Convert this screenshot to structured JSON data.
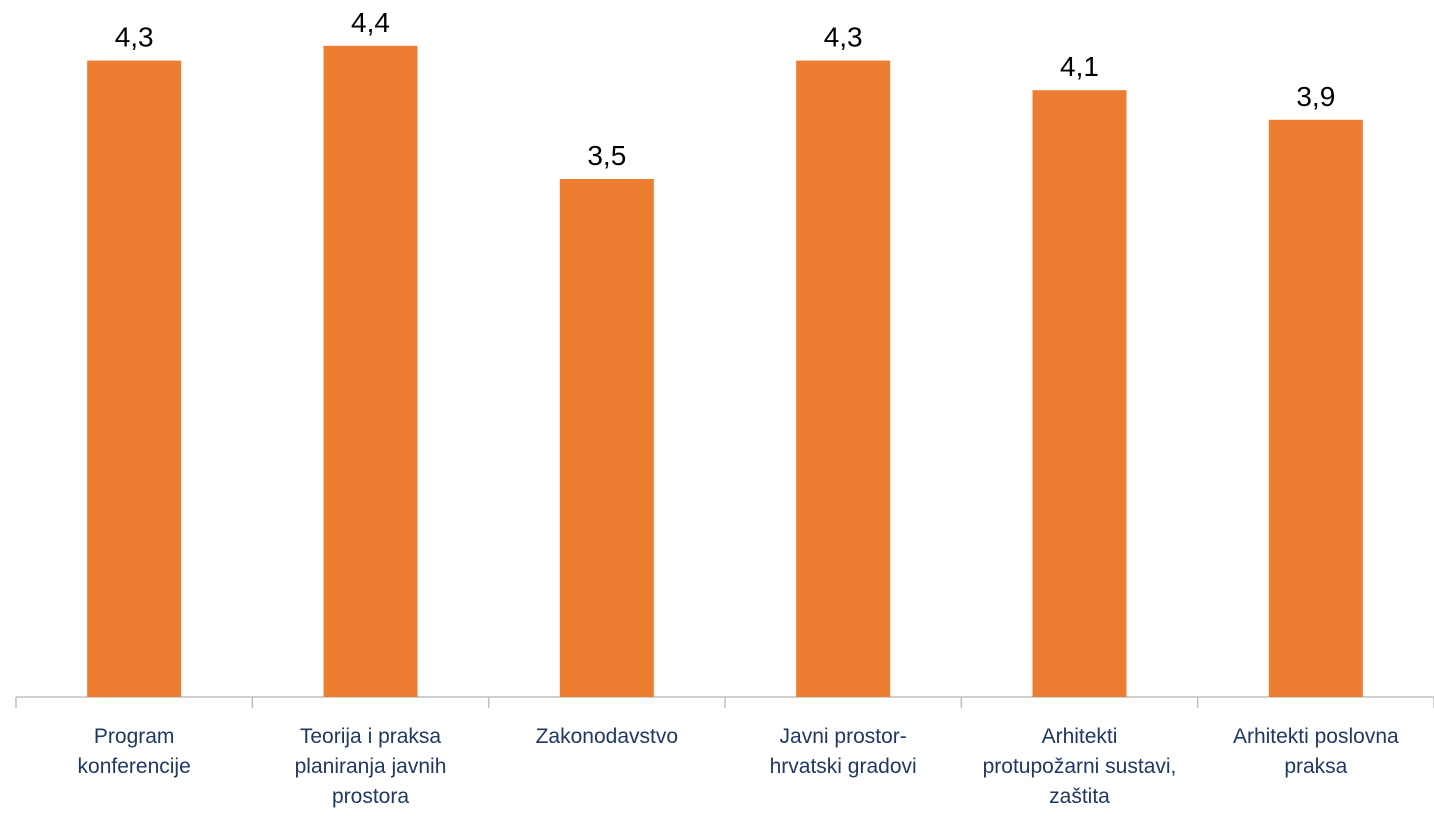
{
  "chart_data": {
    "type": "bar",
    "categories": [
      "Program konferencije",
      "Teorija i praksa planiranja javnih prostora",
      "Zakonodavstvo",
      "Javni prostor-hrvatski gradovi",
      "Arhitekti protupožarni sustavi, zaštita",
      "Arhitekti poslovna praksa"
    ],
    "values": [
      4.3,
      4.4,
      3.5,
      4.3,
      4.1,
      3.9
    ],
    "value_labels": [
      "4,3",
      "4,4",
      "3,5",
      "4,3",
      "4,1",
      "3,9"
    ],
    "color": "#ed7d31"
  }
}
